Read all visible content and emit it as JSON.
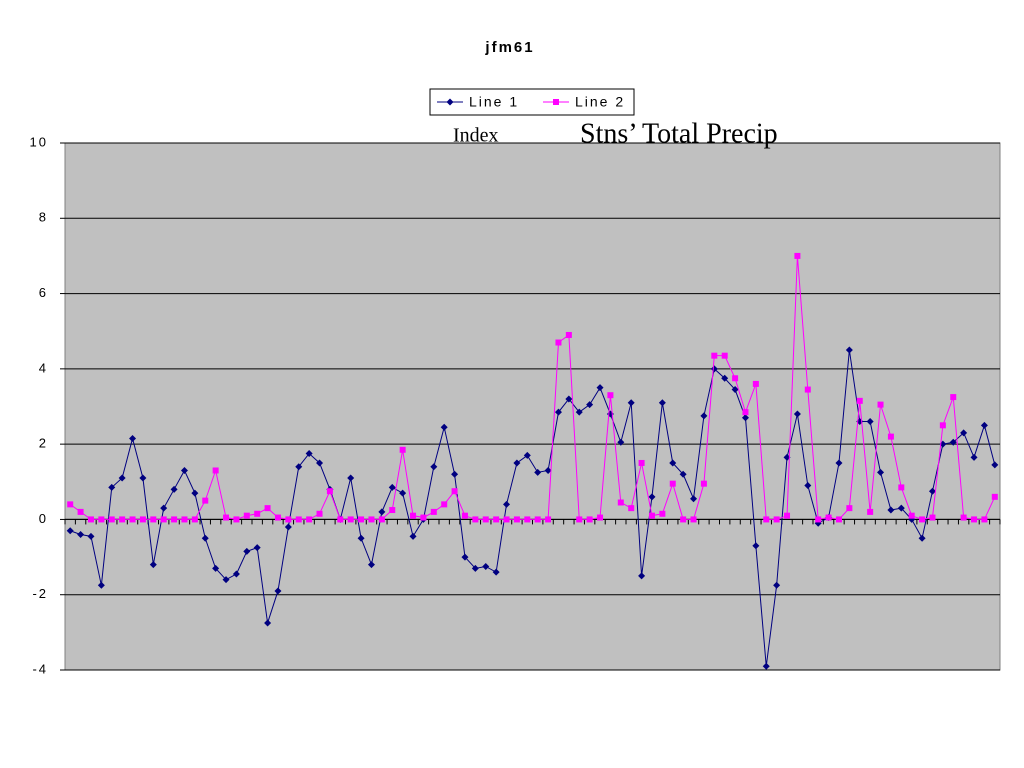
{
  "chart_data": {
    "type": "line",
    "title": "jfm61",
    "annotations": [
      "Index",
      "Stns’ Total Precip"
    ],
    "ylim": [
      -4,
      10
    ],
    "yticks": [
      -4,
      -2,
      0,
      2,
      4,
      6,
      8,
      10
    ],
    "grid": true,
    "legend": "top",
    "series": [
      {
        "name": "Line 1",
        "color": "#000080",
        "values": [
          -0.3,
          -0.4,
          -0.45,
          -1.75,
          0.85,
          1.1,
          2.15,
          1.1,
          -1.2,
          0.3,
          0.8,
          1.3,
          0.7,
          -0.5,
          -1.3,
          -1.6,
          -1.45,
          -0.85,
          -0.75,
          -2.75,
          -1.9,
          -0.2,
          1.4,
          1.75,
          1.5,
          0.8,
          0,
          1.1,
          -0.5,
          -1.2,
          0.2,
          0.85,
          0.7,
          -0.45,
          0,
          1.4,
          2.45,
          1.2,
          -1.0,
          -1.3,
          -1.25,
          -1.4,
          0.4,
          1.5,
          1.7,
          1.25,
          1.3,
          2.85,
          3.2,
          2.85,
          3.05,
          3.5,
          2.8,
          2.05,
          3.1,
          -1.5,
          0.6,
          3.1,
          1.5,
          1.2,
          0.55,
          2.75,
          4.0,
          3.75,
          3.45,
          2.7,
          -0.7,
          -3.9,
          -1.75,
          1.65,
          2.8,
          0.9,
          -0.1,
          0.05,
          1.5,
          4.5,
          2.6,
          2.6,
          1.25,
          0.25,
          0.3,
          0,
          -0.5,
          0.75,
          2.0,
          2.05,
          2.3,
          1.65,
          2.5,
          1.45
        ]
      },
      {
        "name": "Line 2",
        "color": "#ff00ff",
        "values": [
          0.4,
          0.2,
          0,
          0,
          0,
          0,
          0,
          0,
          0,
          0,
          0,
          0,
          0,
          0.5,
          1.3,
          0.05,
          0,
          0.1,
          0.15,
          0.3,
          0.05,
          0,
          0,
          0,
          0.15,
          0.75,
          0,
          0,
          0,
          0,
          0,
          0.25,
          1.85,
          0.1,
          0.05,
          0.2,
          0.4,
          0.75,
          0.1,
          0,
          0,
          0,
          0,
          0,
          0,
          0,
          0,
          4.7,
          4.9,
          0,
          0,
          0.05,
          3.3,
          0.45,
          0.3,
          1.5,
          0.1,
          0.15,
          0.95,
          0,
          0,
          0.95,
          4.35,
          4.35,
          3.75,
          2.85,
          3.6,
          0,
          0,
          0.1,
          7.0,
          3.45,
          0,
          0.05,
          0,
          0.3,
          3.15,
          0.2,
          3.05,
          2.2,
          0.85,
          0.1,
          0,
          0.05,
          2.5,
          3.25,
          0.05,
          0,
          0,
          0.6
        ]
      }
    ]
  }
}
